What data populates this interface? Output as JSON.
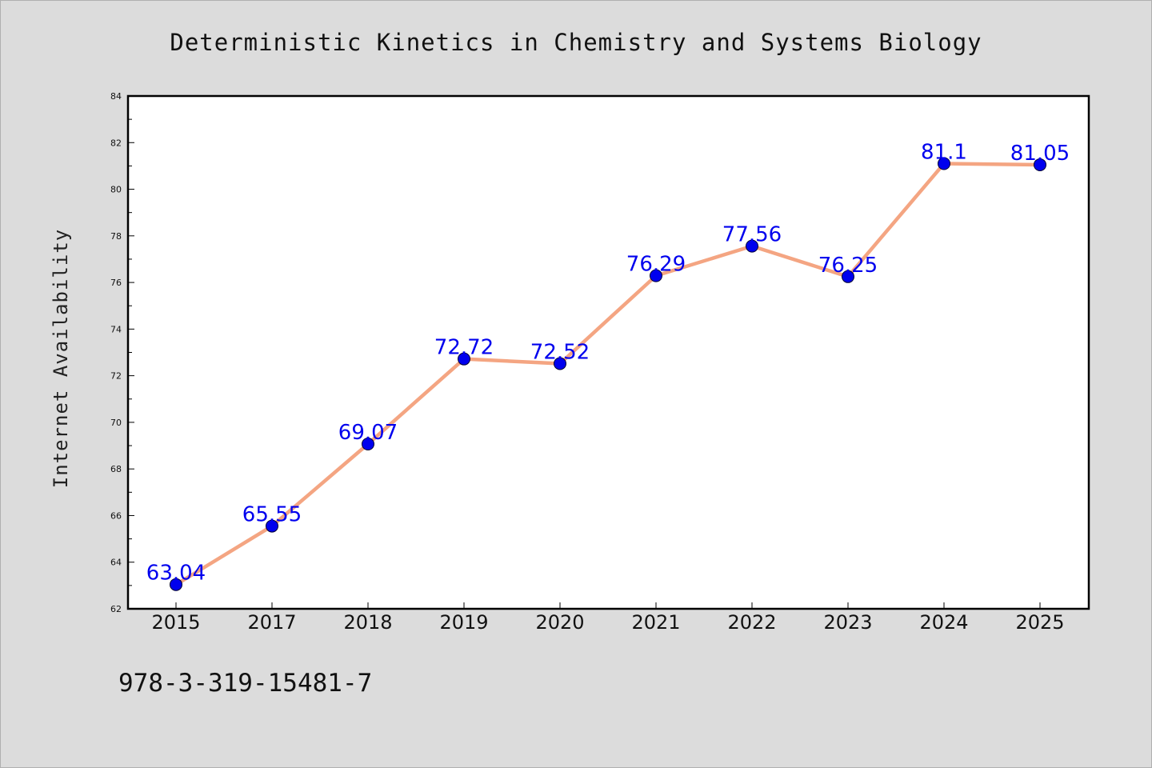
{
  "chart_data": {
    "type": "line",
    "title": "Deterministic Kinetics in Chemistry and Systems Biology",
    "xlabel": "",
    "ylabel": "Internet Availability",
    "categories": [
      "2015",
      "2017",
      "2018",
      "2019",
      "2020",
      "2021",
      "2022",
      "2023",
      "2024",
      "2025"
    ],
    "values": [
      63.04,
      65.55,
      69.07,
      72.72,
      72.52,
      76.29,
      77.56,
      76.25,
      81.1,
      81.05
    ],
    "data_labels": [
      "63.04",
      "65.55",
      "69.07",
      "72.72",
      "72.52",
      "76.29",
      "77.56",
      "76.25",
      "81.1",
      "81.05"
    ],
    "ylim": [
      62,
      84
    ],
    "y_ticks": [
      62,
      64,
      66,
      68,
      70,
      72,
      74,
      76,
      78,
      80,
      82,
      84
    ],
    "grid": false,
    "colors": {
      "line": "#f4a582",
      "marker": "#0000ee",
      "label": "#0000ee"
    }
  },
  "footer": {
    "isbn": "978-3-319-15481-7"
  }
}
